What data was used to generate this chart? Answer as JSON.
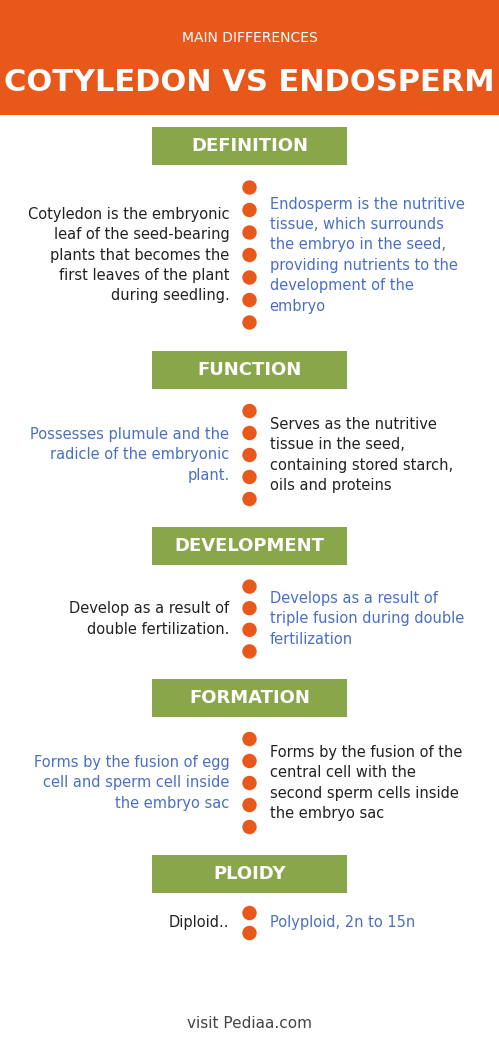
{
  "bg_color": "#ffffff",
  "header_bg": "#e8581a",
  "header_subtitle": "MAIN DIFFERENCES",
  "header_title": "COTYLEDON VS ENDOSPERM",
  "section_bg": "#8aa64a",
  "section_text_color": "#ffffff",
  "dot_color": "#e8581a",
  "left_text_color_default": "#222222",
  "left_text_color_blue": "#4a6fc4",
  "right_text_color_blue": "#4a6fc4",
  "right_text_color_black": "#222222",
  "footer_text": "visit Pediaa.com",
  "sections": [
    {
      "label": "DEFINITION",
      "left_text": "Cotyledon is the embryonic\nleaf of the seed-bearing\nplants that becomes the\nfirst leaves of the plant\nduring seedling.",
      "left_color": "default",
      "right_text": "Endosperm is the nutritive\ntissue, which surrounds\nthe embryo in the seed,\nproviding nutrients to the\ndevelopment of the\nembryо",
      "right_color": "blue",
      "n_dots": 7
    },
    {
      "label": "FUNCTION",
      "left_text": "Possesses plumule and the\nradicle of the embryonic\nplant.",
      "left_color": "blue",
      "right_text": "Serves as the nutritive\ntissue in the seed,\ncontaining stored starch,\noils and proteins",
      "right_color": "black",
      "n_dots": 5
    },
    {
      "label": "DEVELOPMENT",
      "left_text": "Develop as a result of\ndouble fertilization.",
      "left_color": "default",
      "right_text": "Develops as a result of\ntriple fusion during double\nfertilization",
      "right_color": "blue",
      "n_dots": 4
    },
    {
      "label": "FORMATION",
      "left_text": "Forms by the fusion of egg\ncell and sperm cell inside\nthe embryo sac",
      "left_color": "blue",
      "right_text": "Forms by the fusion of the\ncentral cell with the\nsecond sperm cells inside\nthe embryo sac",
      "right_color": "black",
      "n_dots": 5
    },
    {
      "label": "PLOIDY",
      "left_text": "Diploid..",
      "left_color": "default",
      "right_text": "Polyploid, 2n to 15n",
      "right_color": "blue",
      "n_dots": 2
    }
  ]
}
